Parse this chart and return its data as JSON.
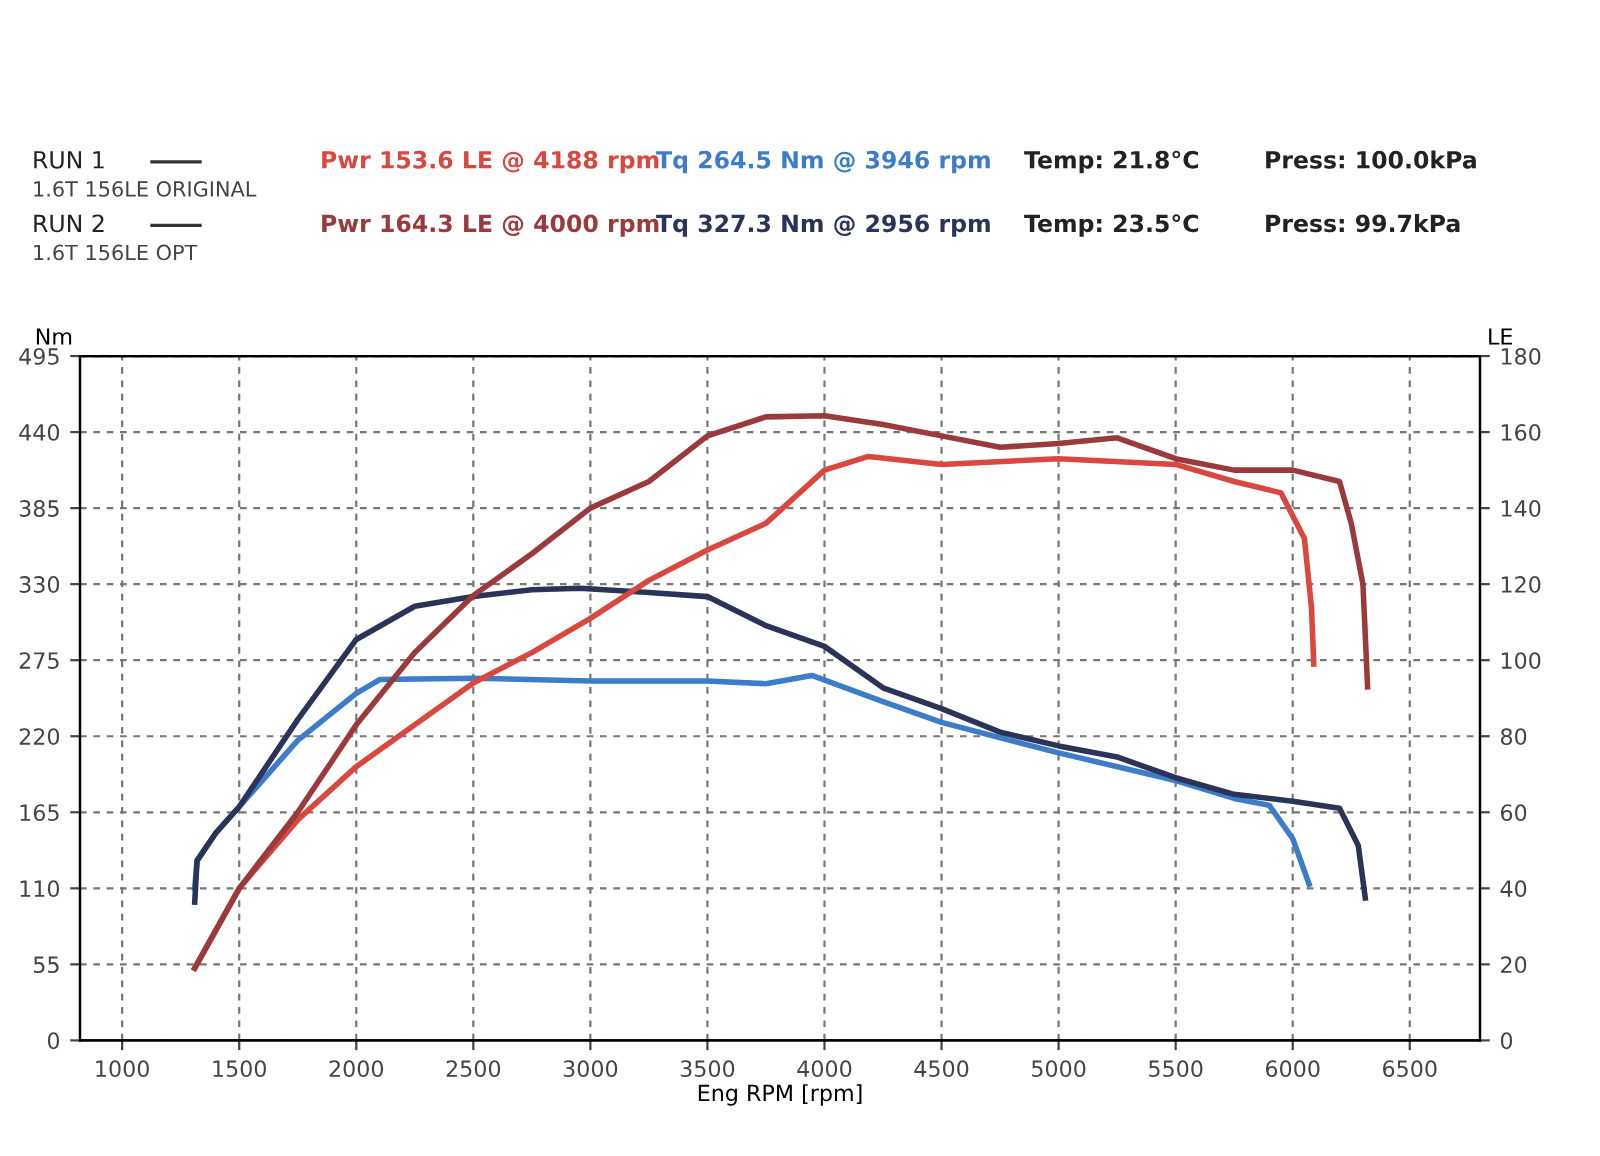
{
  "chart_data": {
    "type": "line",
    "xlabel": "Eng RPM [rpm]",
    "ylabel": "Nm",
    "y2label": "LE",
    "xlim": [
      820,
      6800
    ],
    "xticks": [
      1000,
      1500,
      2000,
      2500,
      3000,
      3500,
      4000,
      4500,
      5000,
      5500,
      6000,
      6500
    ],
    "ylim": [
      0,
      495
    ],
    "yticks": [
      0,
      55,
      110,
      165,
      220,
      275,
      330,
      385,
      440,
      495
    ],
    "y2lim": [
      0,
      180
    ],
    "y2ticks": [
      0,
      20,
      40,
      60,
      80,
      100,
      120,
      140,
      160,
      180
    ],
    "grid": true,
    "line_style": "solid",
    "marker": "none",
    "annotations": [
      "RUN 1",
      "Pwr 153.6 LE @ 4188 rpm",
      "Tq 264.5 Nm @ 3946 rpm",
      "Temp: 21.8°C",
      "Press: 100.0kPa",
      "1.6T 156LE ORIGINAL",
      "RUN 2",
      "Pwr 164.3 LE @ 4000 rpm",
      "Tq 327.3 Nm @ 2956 rpm",
      "Temp: 23.5°C",
      "Press: 99.7kPa",
      "1.6T 156LE OPT"
    ],
    "series": [
      {
        "color": "#d9473f",
        "axis": "y2",
        "x": [
          1310,
          1500,
          1750,
          2000,
          2250,
          2500,
          2750,
          3000,
          3250,
          3500,
          3750,
          4000,
          4188,
          4500,
          5000,
          5500,
          5750,
          5950,
          6050,
          6080,
          6090
        ],
        "values": [
          19,
          40,
          58,
          72,
          83,
          94,
          102,
          111,
          121,
          129,
          136,
          150,
          153.6,
          151.5,
          153,
          151.5,
          147,
          144,
          132,
          114,
          99
        ]
      },
      {
        "color": "#9b3a3c",
        "axis": "y2",
        "x": [
          1310,
          1500,
          1750,
          2000,
          2250,
          2500,
          2750,
          3000,
          3250,
          3500,
          3750,
          4000,
          4250,
          4500,
          4750,
          5000,
          5250,
          5500,
          5750,
          6000,
          6200,
          6250,
          6300,
          6320
        ],
        "values": [
          19,
          40,
          60,
          83,
          102,
          117,
          128,
          140,
          147,
          159,
          164,
          164.3,
          162,
          159,
          156,
          157,
          158.5,
          153,
          150,
          150,
          147,
          136,
          120,
          93
        ]
      },
      {
        "color": "#3d7cc9",
        "x": [
          1310,
          1320,
          1400,
          1500,
          1750,
          2000,
          2100,
          2500,
          3000,
          3500,
          3750,
          3946,
          4250,
          4500,
          5000,
          5500,
          5750,
          5900,
          6000,
          6070
        ],
        "values": [
          110,
          130,
          150,
          169,
          217,
          251,
          261,
          262,
          260,
          260,
          258,
          264,
          245,
          230,
          208,
          188,
          175,
          170,
          146,
          113
        ]
      },
      {
        "color": "#2b3358",
        "x": [
          1310,
          1320,
          1400,
          1500,
          1750,
          2000,
          2250,
          2500,
          2750,
          2956,
          3250,
          3500,
          3750,
          4000,
          4250,
          4500,
          4750,
          5000,
          5250,
          5500,
          5750,
          6000,
          6200,
          6280,
          6310
        ],
        "values": [
          100,
          130,
          150,
          169,
          232,
          290,
          314,
          321,
          326,
          327,
          324,
          321,
          300,
          285,
          255,
          240,
          223,
          213,
          205,
          190,
          178,
          173,
          168,
          141,
          103
        ]
      }
    ]
  }
}
